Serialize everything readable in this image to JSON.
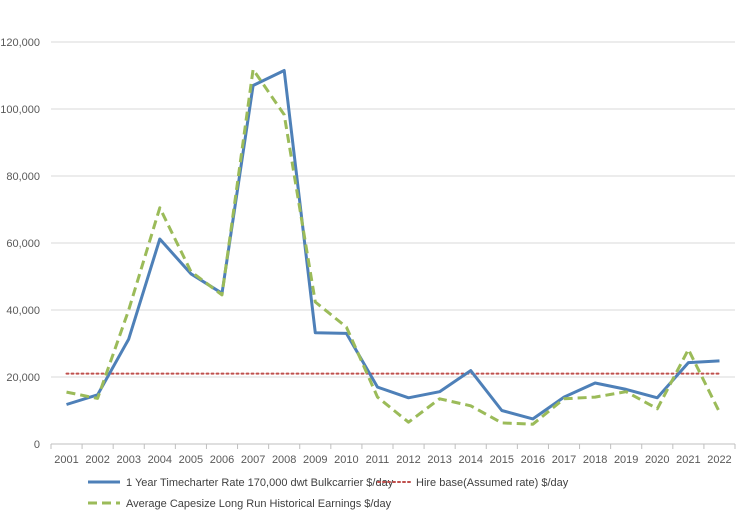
{
  "chart_data": {
    "type": "line",
    "title": "",
    "xlabel": "",
    "ylabel": "",
    "categories": [
      "2001",
      "2002",
      "2003",
      "2004",
      "2005",
      "2006",
      "2007",
      "2008",
      "2009",
      "2010",
      "2011",
      "2012",
      "2013",
      "2014",
      "2015",
      "2016",
      "2017",
      "2018",
      "2019",
      "2020",
      "2021",
      "2022"
    ],
    "ylim": [
      0,
      120000
    ],
    "yticks": [
      0,
      20000,
      40000,
      60000,
      80000,
      100000,
      120000
    ],
    "ytick_labels": [
      "0",
      "20,000",
      "40,000",
      "60,000",
      "80,000",
      "100,000",
      "120,000"
    ],
    "grid": "horizontal",
    "legend_position": "bottom",
    "series": [
      {
        "name": "1 Year Timecharter Rate 170,000 dwt Bulkcarrier $/day",
        "color": "#4e80b8",
        "style": "solid",
        "values": [
          11800,
          14700,
          31300,
          61200,
          50800,
          45000,
          107000,
          111500,
          33200,
          33000,
          17000,
          13800,
          15600,
          21900,
          10000,
          7500,
          14000,
          18200,
          16300,
          13800,
          24300,
          24800
        ]
      },
      {
        "name": "Hire base(Assumed rate) $/day",
        "color": "#c0504d",
        "style": "dotted",
        "values": [
          21000,
          21000,
          21000,
          21000,
          21000,
          21000,
          21000,
          21000,
          21000,
          21000,
          21000,
          21000,
          21000,
          21000,
          21000,
          21000,
          21000,
          21000,
          21000,
          21000,
          21000,
          21000
        ]
      },
      {
        "name": "Average Capesize Long Run Historical Earnings $/day",
        "color": "#9bbb59",
        "style": "dashed",
        "values": [
          15500,
          13600,
          40000,
          70500,
          51500,
          44500,
          111800,
          98300,
          42400,
          34900,
          14000,
          6500,
          13500,
          11400,
          6300,
          5900,
          13500,
          14000,
          15600,
          10500,
          28200,
          9500
        ]
      }
    ]
  }
}
